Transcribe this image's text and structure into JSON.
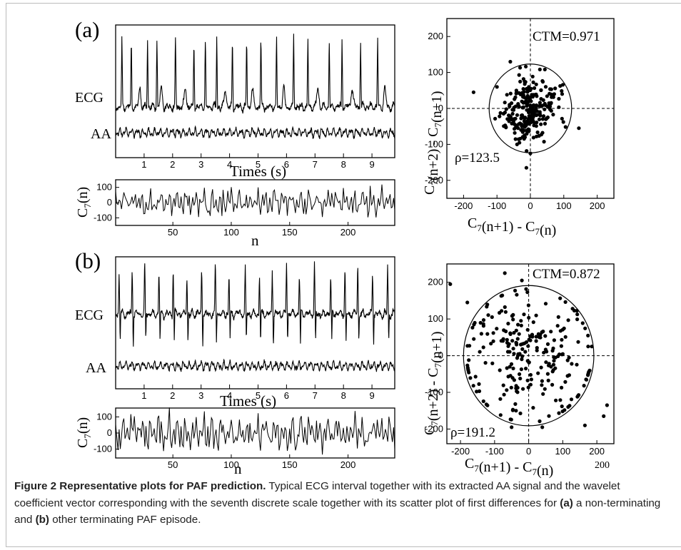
{
  "chart_data": [
    {
      "panel": "(a)",
      "type": "line",
      "trace_labels": [
        "ECG",
        "AA"
      ],
      "xlabel": "Times (s)",
      "xticks": [
        1,
        2,
        3,
        4,
        5,
        6,
        7,
        8,
        9
      ],
      "xlim": [
        0,
        9.8
      ],
      "ecg_r_peak_times": [
        0.22,
        0.55,
        1.12,
        1.45,
        2.1,
        2.75,
        3.15,
        3.55,
        4.1,
        4.6,
        5.1,
        5.65,
        6.25,
        6.75,
        7.5,
        7.95,
        8.6,
        9.2
      ],
      "ecg_t_wave_times": [
        0.85,
        1.6,
        2.45,
        3.85,
        4.8,
        5.9,
        7.1,
        8.3,
        9.45
      ]
    },
    {
      "panel": "(a)",
      "type": "line",
      "ylabel": "C7(n)",
      "xlabel": "n",
      "xticks": [
        50,
        100,
        150,
        200
      ],
      "yticks": [
        100,
        0,
        -100
      ],
      "xlim": [
        1,
        240
      ],
      "ylim": [
        -150,
        150
      ]
    },
    {
      "panel": "(a)",
      "type": "scatter",
      "xlabel": "C7(n+1) - C7(n)",
      "ylabel": "C7(n+2) - C7(n+1)",
      "xticks": [
        -200,
        -100,
        0,
        100,
        200
      ],
      "yticks": [
        200,
        100,
        0,
        -100,
        -200
      ],
      "xlim": [
        -250,
        250
      ],
      "ylim": [
        -250,
        250
      ],
      "ctm": "CTM=0.971",
      "rho": "ρ=123.5",
      "circle_radius": 123.5,
      "n_points": 240,
      "spread_sd": 42,
      "outliers": [
        [
          -170,
          45
        ],
        [
          -60,
          130
        ],
        [
          -12,
          -165
        ],
        [
          145,
          -55
        ],
        [
          -40,
          -100
        ],
        [
          0,
          -125
        ],
        [
          95,
          40
        ],
        [
          -100,
          60
        ]
      ]
    },
    {
      "panel": "(b)",
      "type": "line",
      "trace_labels": [
        "ECG",
        "AA"
      ],
      "xlabel": "Times (s)",
      "xticks": [
        1,
        2,
        3,
        4,
        5,
        6,
        7,
        8,
        9
      ],
      "xlim": [
        0,
        9.8
      ],
      "ecg_r_peak_times": [
        0.12,
        0.58,
        1.02,
        1.52,
        2.02,
        2.5,
        3.02,
        3.5,
        3.98,
        4.55,
        5.05,
        5.5,
        6.0,
        6.45,
        6.98,
        7.55,
        8.05,
        8.5,
        9.02,
        9.55
      ]
    },
    {
      "panel": "(b)",
      "type": "line",
      "ylabel": "C7(n)",
      "xlabel": "n",
      "xticks": [
        50,
        100,
        150,
        200
      ],
      "yticks": [
        100,
        0,
        -100
      ],
      "xlim": [
        1,
        240
      ],
      "ylim": [
        -150,
        160
      ]
    },
    {
      "panel": "(b)",
      "type": "scatter",
      "xlabel": "C7(n+1) - C7(n)",
      "ylabel": "C7(n+2) - C7(n+1)",
      "xticks": [
        -200,
        -100,
        0,
        100,
        200
      ],
      "yticks": [
        200,
        100,
        0,
        -100,
        -200
      ],
      "xlim": [
        -240,
        250
      ],
      "ylim": [
        -240,
        250
      ],
      "ctm": "CTM=0.872",
      "rho": "ρ=191.2",
      "circle_radius": 191.2,
      "n_points": 240,
      "spread_sd": 95,
      "outliers": [
        [
          -230,
          195
        ],
        [
          -180,
          145
        ],
        [
          -70,
          225
        ],
        [
          -20,
          205
        ],
        [
          230,
          -135
        ],
        [
          220,
          -165
        ],
        [
          165,
          -190
        ],
        [
          40,
          -195
        ],
        [
          -50,
          -195
        ],
        [
          185,
          25
        ]
      ]
    }
  ],
  "panel_a": {
    "label": "(a)",
    "ecg_label": "ECG",
    "aa_label": "AA",
    "time_axis_label": "Times (s)",
    "c7_ylabel_main": "C",
    "c7_ylabel_sub": "7",
    "c7_ylabel_rest": "(n)",
    "c7_xlabel": "n",
    "scatter_ctm": "CTM=0.971",
    "scatter_rho": "ρ=123.5",
    "scatter_xlabel": "C7(n+1) - C7(n)",
    "scatter_ylabel": "C7(n+2) - C7(n+1)"
  },
  "panel_b": {
    "label": "(b)",
    "ecg_label": "ECG",
    "aa_label": "AA",
    "time_axis_label": "Times (s)",
    "c7_ylabel_main": "C",
    "c7_ylabel_sub": "7",
    "c7_ylabel_rest": "(n)",
    "c7_xlabel": "n",
    "scatter_ctm": "CTM=0.872",
    "scatter_rho": "ρ=191.2",
    "scatter_xlabel": "C7(n+1) - C7(n)",
    "scatter_ylabel": "C7(n+2) - C7(n+1)",
    "stray_label": "200"
  },
  "caption": {
    "title": "Figure 2 Representative plots for PAF prediction.",
    "text_1": " Typical ECG interval together with its extracted AA signal and the wavelet coefficient vector corresponding with the seventh discrete scale together with its scatter plot of first differences for ",
    "bold_a": "(a)",
    "text_2": " a non-terminating and ",
    "bold_b": "(b)",
    "text_3": " other terminating PAF episode."
  }
}
